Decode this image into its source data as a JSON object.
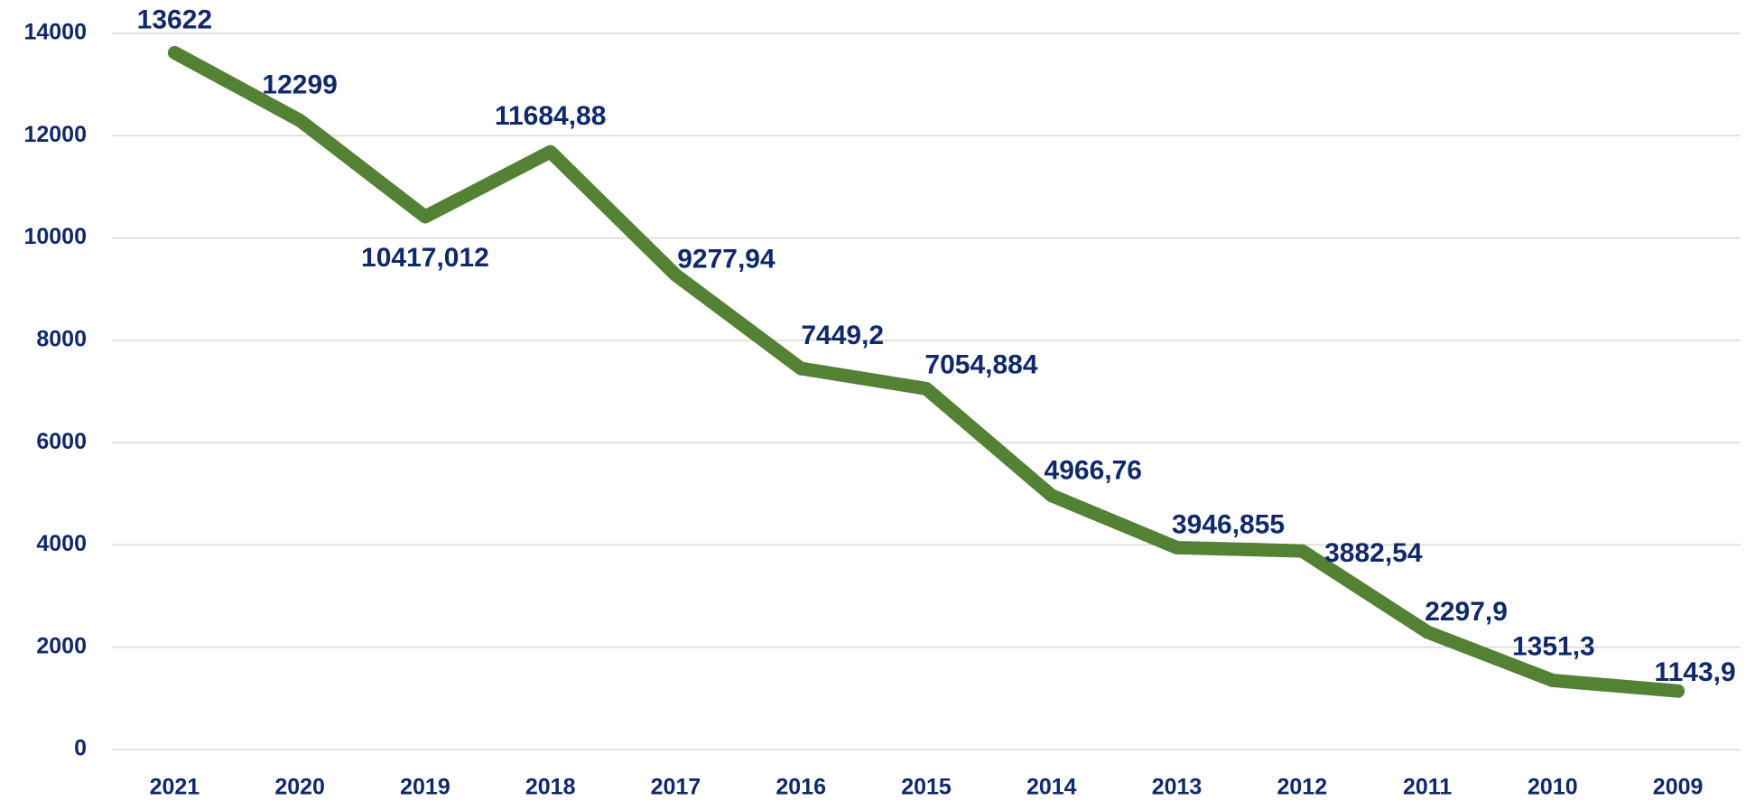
{
  "chart_data": {
    "type": "line",
    "categories": [
      "2021",
      "2020",
      "2019",
      "2018",
      "2017",
      "2016",
      "2015",
      "2014",
      "2013",
      "2012",
      "2011",
      "2010",
      "2009"
    ],
    "series": [
      {
        "color": "#548235",
        "values": [
          13622,
          12299,
          10417.012,
          11684.88,
          9277.94,
          7449.2,
          7054.884,
          4966.76,
          3946.855,
          3882.54,
          2297.9,
          1351.3,
          1143.9
        ],
        "value_labels": [
          "13622",
          "12299",
          "10417,012",
          "11684,88",
          "9277,94",
          "7449,2",
          "7054,884",
          "4966,76",
          "3946,855",
          "3882,54",
          "2297,9",
          "1351,3",
          "1143,9"
        ]
      }
    ],
    "ylim": [
      0,
      14000
    ],
    "yticks": [
      0,
      2000,
      4000,
      6000,
      8000,
      10000,
      12000,
      14000
    ],
    "grid": true
  }
}
